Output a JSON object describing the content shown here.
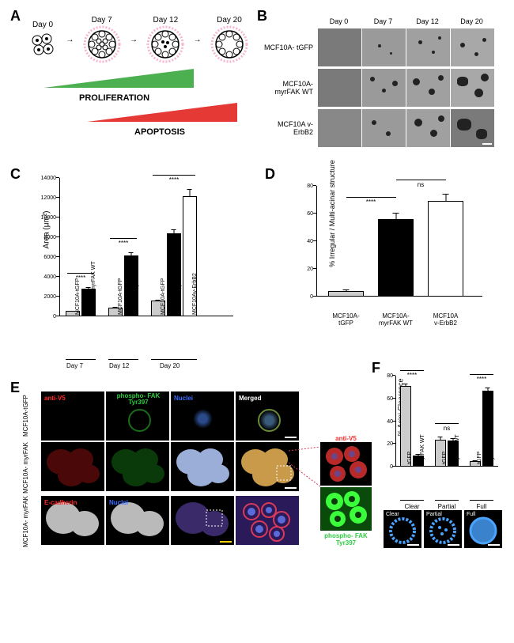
{
  "panelA": {
    "days": [
      "Day 0",
      "Day 7",
      "Day 12",
      "Day 20"
    ],
    "proliferation_label": "PROLIFERATION",
    "apoptosis_label": "APOPTOSIS",
    "proliferation_color": "#4caf50",
    "apoptosis_color": "#e53935",
    "matrix_color": "#f7b6d2",
    "cell_outline": "#000000"
  },
  "panelB": {
    "col_headers": [
      "Day 0",
      "Day 7",
      "Day 12",
      "Day 20"
    ],
    "row_labels": [
      "MCF10A-\ntGFP",
      "MCF10A-\nmyrFAK WT",
      "MCF10A\nv-ErbB2"
    ],
    "bg_color": "#8a8a8a",
    "speck_color": "#1a1a1a"
  },
  "panelC": {
    "ylabel": "Area (μm²)",
    "ymax": 14000,
    "ytick_step": 2000,
    "yticks": [
      0,
      2000,
      4000,
      6000,
      8000,
      10000,
      12000,
      14000
    ],
    "groups": [
      "Day 7",
      "Day 12",
      "Day 20"
    ],
    "bars": [
      {
        "label": "MCF10A-tGFP",
        "group": 0,
        "value": 550,
        "err": 120,
        "fill": "#cccccc"
      },
      {
        "label": "MCF10A-myrFAK WT",
        "group": 0,
        "value": 2800,
        "err": 250,
        "fill": "#000000"
      },
      {
        "label": "MCF10A-tGFP",
        "group": 1,
        "value": 900,
        "err": 150,
        "fill": "#cccccc"
      },
      {
        "label": "MCF10A-myrFAK WT",
        "group": 1,
        "value": 6200,
        "err": 400,
        "fill": "#000000"
      },
      {
        "label": "MCF10A-tGFP",
        "group": 2,
        "value": 1600,
        "err": 200,
        "fill": "#cccccc"
      },
      {
        "label": "MCF10A-myrFAK WT",
        "group": 2,
        "value": 8400,
        "err": 500,
        "fill": "#000000"
      },
      {
        "label": "MCF10Av-ErbB2",
        "group": 2,
        "value": 12200,
        "err": 800,
        "fill": "#ffffff"
      }
    ],
    "sig": "****"
  },
  "panelD": {
    "ylabel": "% Irregular / Multi-acinar structure",
    "ymax": 80,
    "yticks": [
      0,
      20,
      40,
      60,
      80
    ],
    "bars": [
      {
        "label": "MCF10A-\ntGFP",
        "value": 4,
        "err": 1.5,
        "fill": "#cccccc"
      },
      {
        "label": "MCF10A-\nmyrFAK WT",
        "value": 56,
        "err": 5,
        "fill": "#000000"
      },
      {
        "label": "MCF10A\nv-ErbB2",
        "value": 69,
        "err": 6,
        "fill": "#ffffff"
      }
    ],
    "sig1": "****",
    "sig2": "ns"
  },
  "panelE": {
    "row_labels": [
      "MCF10A-tGFP",
      "MCF10A-\nmyrFAK"
    ],
    "col_headers": [
      {
        "text": "anti-V5",
        "color": "#ff2a2a"
      },
      {
        "text": "phospho-\nFAK Tyr397",
        "color": "#2ecc40"
      },
      {
        "text": "Nuclei",
        "color": "#3a6cff"
      },
      {
        "text": "Merged",
        "color": "#ffffff"
      }
    ],
    "row3_label": "MCF10A-\nmyrFAK",
    "row3_headers": [
      {
        "text": "E-cadherin",
        "color": "#ff2a2a"
      },
      {
        "text": "Nuclei",
        "color": "#3a6cff"
      }
    ],
    "inset": [
      {
        "text": "anti-V5",
        "color": "#ff2a2a"
      },
      {
        "text": "phospho-\nFAK Tyr397",
        "color": "#2ecc40"
      }
    ],
    "scale_color_white": "#ffffff",
    "scale_color_yellow": "#ffd400"
  },
  "panelF": {
    "ylabel": "% Acini Clearence",
    "ymax": 80,
    "yticks": [
      0,
      20,
      40,
      60,
      80
    ],
    "groups": [
      "Clear",
      "Partial",
      "Full"
    ],
    "bars": [
      {
        "label": "tGFP",
        "group": 0,
        "value": 71,
        "err": 3,
        "fill": "#cccccc"
      },
      {
        "label": "myrFAK WT",
        "group": 0,
        "value": 10,
        "err": 2,
        "fill": "#000000"
      },
      {
        "label": "tGFP",
        "group": 1,
        "value": 24,
        "err": 3,
        "fill": "#cccccc"
      },
      {
        "label": "myrFAK WT",
        "group": 1,
        "value": 23,
        "err": 3,
        "fill": "#000000"
      },
      {
        "label": "tGFP",
        "group": 2,
        "value": 5,
        "err": 1,
        "fill": "#cccccc"
      },
      {
        "label": "myrFAK WT",
        "group": 2,
        "value": 67,
        "err": 3,
        "fill": "#000000"
      }
    ],
    "sig": [
      "****",
      "ns",
      "****"
    ],
    "example_labels": [
      "Clear",
      "Partial",
      "Full"
    ],
    "nuclei_color": "#4aa3ff"
  }
}
